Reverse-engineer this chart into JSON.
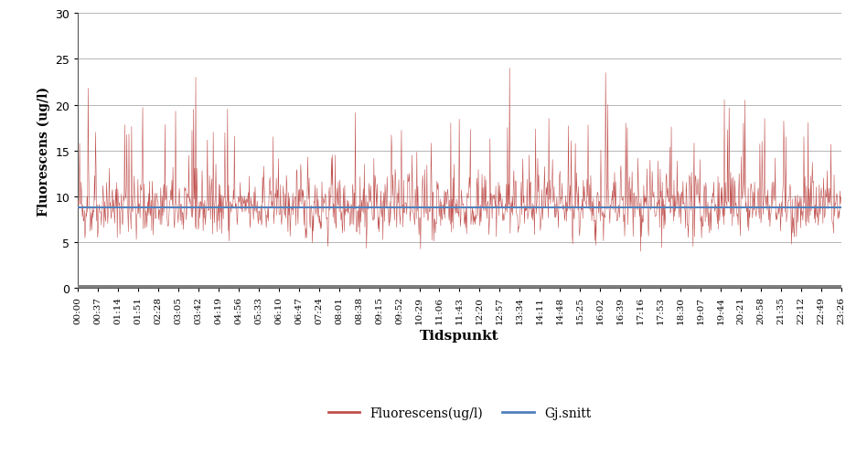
{
  "title": "",
  "xlabel": "Tidspunkt",
  "ylabel": "Fluorescens (ug/l)",
  "ylim": [
    0,
    30
  ],
  "yticks": [
    0,
    5,
    10,
    15,
    20,
    25,
    30
  ],
  "mean_value": 8.8,
  "line_color": "#C0504D",
  "mean_color": "#4F81BD",
  "background_color": "#FFFFFF",
  "plot_bg_color": "#FFFFFF",
  "legend_labels": [
    "Fluorescens(ug/l)",
    "Gj.snitt"
  ],
  "x_tick_labels": [
    "00:00",
    "00:37",
    "01:14",
    "01:51",
    "02:28",
    "03:05",
    "03:42",
    "04:19",
    "04:56",
    "05:33",
    "06:10",
    "06:47",
    "07:24",
    "08:01",
    "08:38",
    "09:15",
    "09:52",
    "10:29",
    "11:06",
    "11:43",
    "12:20",
    "12:57",
    "13:34",
    "14:11",
    "14:48",
    "15:25",
    "16:02",
    "16:39",
    "17:16",
    "17:53",
    "18:30",
    "19:07",
    "19:44",
    "20:21",
    "20:58",
    "21:35",
    "22:12",
    "22:49",
    "23:26"
  ],
  "n_points": 1440,
  "seed": 42,
  "gray_bar_color": "#808080",
  "grid_color": "#AAAAAA",
  "spine_color": "#555555"
}
